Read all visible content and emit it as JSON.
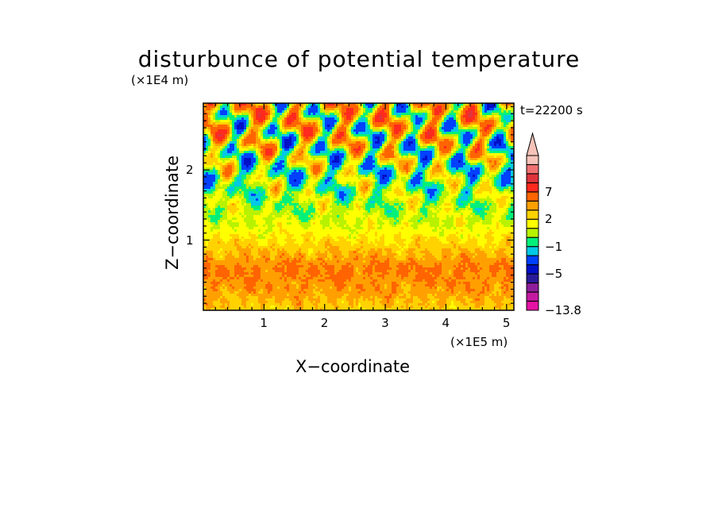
{
  "chart_data": {
    "type": "heatmap",
    "title": "disturbunce of potential temperature",
    "xlabel": "X−coordinate",
    "ylabel": "Z−coordinate",
    "x_unit": "(×1E5 m)",
    "y_unit": "(×1E4 m)",
    "time_label": "t=22200 s",
    "xlim": [
      0,
      5.12
    ],
    "ylim": [
      0,
      2.95
    ],
    "x_ticks": [
      "1",
      "2",
      "3",
      "4",
      "5"
    ],
    "y_ticks": [
      "1",
      "2"
    ],
    "colorbar": {
      "levels": [
        -13.8,
        -11,
        -9,
        -7,
        -5,
        -3,
        -2,
        -1,
        0,
        1,
        2,
        3,
        5,
        7,
        9,
        11
      ],
      "colors": [
        "#e612a5",
        "#c31aa0",
        "#8e1e9a",
        "#2a1a9a",
        "#0010c8",
        "#0040ff",
        "#00c8e6",
        "#00f07a",
        "#b8f200",
        "#ffff00",
        "#ffd200",
        "#ffa000",
        "#ff6400",
        "#ff2a1e",
        "#e0343c",
        "#f07272",
        "#f5c3b9"
      ],
      "extend": "max",
      "tick_labels": [
        {
          "value": 7,
          "text": "7"
        },
        {
          "value": 2,
          "text": "2"
        },
        {
          "value": -1,
          "text": "−1"
        },
        {
          "value": -5,
          "text": "−5"
        },
        {
          "value": -13.8,
          "text": "−13.8"
        }
      ]
    },
    "field_description_z_profile": [
      {
        "z": 0.0,
        "value": 1.5
      },
      {
        "z": 0.3,
        "value": 2.6
      },
      {
        "z": 0.6,
        "value": 3.2
      },
      {
        "z": 0.9,
        "value": 1.6
      },
      {
        "z": 1.1,
        "value": 0.6
      },
      {
        "z": 1.3,
        "value": -0.2
      },
      {
        "z": 1.6,
        "value": -0.5
      },
      {
        "z": 1.9,
        "value": -1.0
      },
      {
        "z": 2.3,
        "value": 0.0
      },
      {
        "z": 2.7,
        "value": 1.0
      }
    ]
  }
}
